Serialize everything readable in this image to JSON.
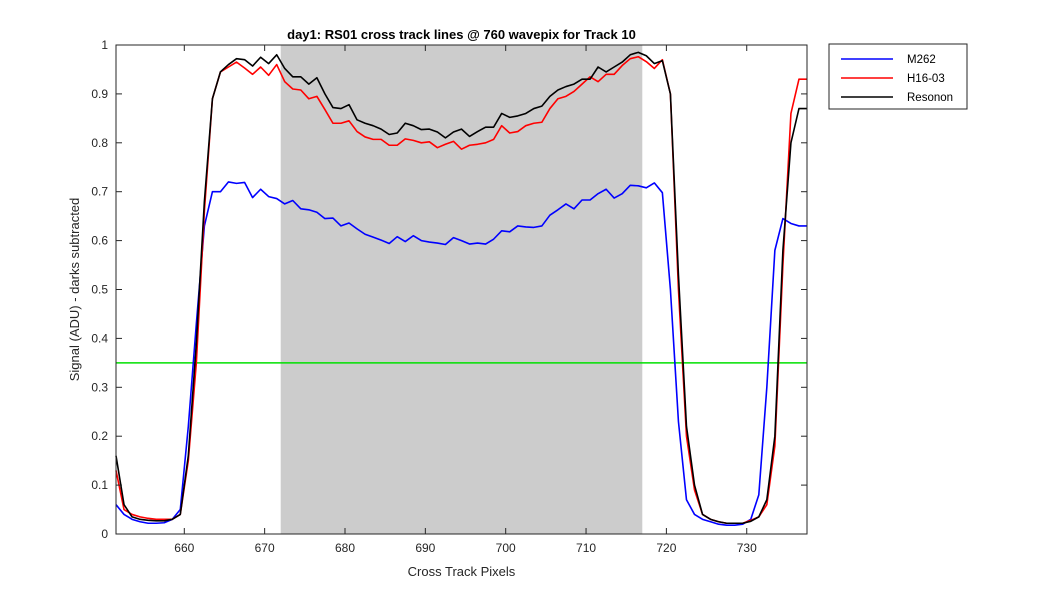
{
  "chart_data": {
    "type": "line",
    "title": "day1: RS01  cross track lines @ 760 wavepix for Track 10",
    "xlabel": "Cross Track Pixels",
    "ylabel": "Signal (ADU) - darks subtracted",
    "xlim": [
      651.5,
      737.5
    ],
    "ylim": [
      0,
      1
    ],
    "xticks": [
      660,
      670,
      680,
      690,
      700,
      710,
      720,
      730
    ],
    "yticks": [
      0,
      0.1,
      0.2,
      0.3,
      0.4,
      0.5,
      0.6,
      0.7,
      0.8,
      0.9,
      1
    ],
    "shaded_region": {
      "x": [
        672,
        717
      ],
      "color": "#cccccc"
    },
    "reference_line": {
      "y": 0.35,
      "color": "#00e000"
    },
    "legend_position": "outside-top-right",
    "grid": false,
    "x": [
      651.5,
      652.5,
      653.5,
      654.5,
      655.5,
      656.5,
      657.5,
      658.5,
      659.5,
      660.5,
      661.5,
      662.5,
      663.5,
      664.5,
      665.5,
      666.5,
      667.5,
      668.5,
      669.5,
      670.5,
      671.5,
      672.5,
      673.5,
      674.5,
      675.5,
      676.5,
      677.5,
      678.5,
      679.5,
      680.5,
      681.5,
      682.5,
      683.5,
      684.5,
      685.5,
      686.5,
      687.5,
      688.5,
      689.5,
      690.5,
      691.5,
      692.5,
      693.5,
      694.5,
      695.5,
      696.5,
      697.5,
      698.5,
      699.5,
      700.5,
      701.5,
      702.5,
      703.5,
      704.5,
      705.5,
      706.5,
      707.5,
      708.5,
      709.5,
      710.5,
      711.5,
      712.5,
      713.5,
      714.5,
      715.5,
      716.5,
      717.5,
      718.5,
      719.5,
      720.5,
      721.5,
      722.5,
      723.5,
      724.5,
      725.5,
      726.5,
      727.5,
      728.5,
      729.5,
      730.5,
      731.5,
      732.5,
      733.5,
      734.5,
      735.5,
      736.5,
      737.5
    ],
    "series": [
      {
        "name": "M262",
        "color": "#0000ff",
        "values": [
          0.06,
          0.04,
          0.03,
          0.025,
          0.022,
          0.022,
          0.023,
          0.03,
          0.05,
          0.22,
          0.43,
          0.63,
          0.7,
          0.7,
          0.72,
          0.717,
          0.719,
          0.688,
          0.705,
          0.69,
          0.686,
          0.675,
          0.682,
          0.665,
          0.663,
          0.658,
          0.645,
          0.646,
          0.63,
          0.636,
          0.624,
          0.613,
          0.607,
          0.601,
          0.594,
          0.608,
          0.598,
          0.61,
          0.6,
          0.597,
          0.595,
          0.592,
          0.606,
          0.6,
          0.593,
          0.595,
          0.593,
          0.603,
          0.62,
          0.618,
          0.63,
          0.628,
          0.627,
          0.63,
          0.652,
          0.663,
          0.675,
          0.665,
          0.683,
          0.683,
          0.696,
          0.705,
          0.687,
          0.696,
          0.713,
          0.712,
          0.708,
          0.718,
          0.698,
          0.5,
          0.23,
          0.07,
          0.04,
          0.03,
          0.025,
          0.02,
          0.018,
          0.018,
          0.02,
          0.03,
          0.08,
          0.3,
          0.58,
          0.645,
          0.635,
          0.63,
          0.63
        ]
      },
      {
        "name": "H16-03",
        "color": "#ff0000",
        "values": [
          0.13,
          0.05,
          0.04,
          0.035,
          0.032,
          0.03,
          0.03,
          0.03,
          0.04,
          0.15,
          0.35,
          0.66,
          0.89,
          0.945,
          0.955,
          0.965,
          0.953,
          0.94,
          0.955,
          0.938,
          0.96,
          0.925,
          0.91,
          0.908,
          0.89,
          0.895,
          0.868,
          0.84,
          0.84,
          0.845,
          0.823,
          0.812,
          0.807,
          0.807,
          0.795,
          0.795,
          0.808,
          0.805,
          0.8,
          0.802,
          0.79,
          0.797,
          0.803,
          0.787,
          0.795,
          0.797,
          0.8,
          0.807,
          0.835,
          0.82,
          0.823,
          0.835,
          0.84,
          0.842,
          0.87,
          0.89,
          0.895,
          0.905,
          0.92,
          0.935,
          0.925,
          0.94,
          0.94,
          0.958,
          0.972,
          0.976,
          0.966,
          0.952,
          0.97,
          0.9,
          0.5,
          0.2,
          0.09,
          0.04,
          0.03,
          0.025,
          0.022,
          0.022,
          0.022,
          0.028,
          0.035,
          0.06,
          0.18,
          0.55,
          0.86,
          0.93,
          0.93
        ]
      },
      {
        "name": "Resonon",
        "color": "#000000",
        "values": [
          0.16,
          0.06,
          0.035,
          0.03,
          0.028,
          0.027,
          0.027,
          0.03,
          0.04,
          0.16,
          0.39,
          0.68,
          0.89,
          0.945,
          0.96,
          0.972,
          0.97,
          0.957,
          0.975,
          0.962,
          0.98,
          0.952,
          0.935,
          0.935,
          0.92,
          0.933,
          0.9,
          0.872,
          0.87,
          0.878,
          0.847,
          0.84,
          0.835,
          0.828,
          0.817,
          0.82,
          0.84,
          0.835,
          0.827,
          0.828,
          0.822,
          0.81,
          0.822,
          0.828,
          0.813,
          0.823,
          0.832,
          0.832,
          0.86,
          0.852,
          0.855,
          0.86,
          0.87,
          0.875,
          0.895,
          0.908,
          0.915,
          0.92,
          0.93,
          0.93,
          0.955,
          0.945,
          0.955,
          0.965,
          0.98,
          0.985,
          0.978,
          0.962,
          0.968,
          0.9,
          0.53,
          0.22,
          0.1,
          0.04,
          0.03,
          0.025,
          0.022,
          0.022,
          0.022,
          0.026,
          0.035,
          0.07,
          0.2,
          0.58,
          0.8,
          0.87,
          0.87
        ]
      }
    ]
  }
}
